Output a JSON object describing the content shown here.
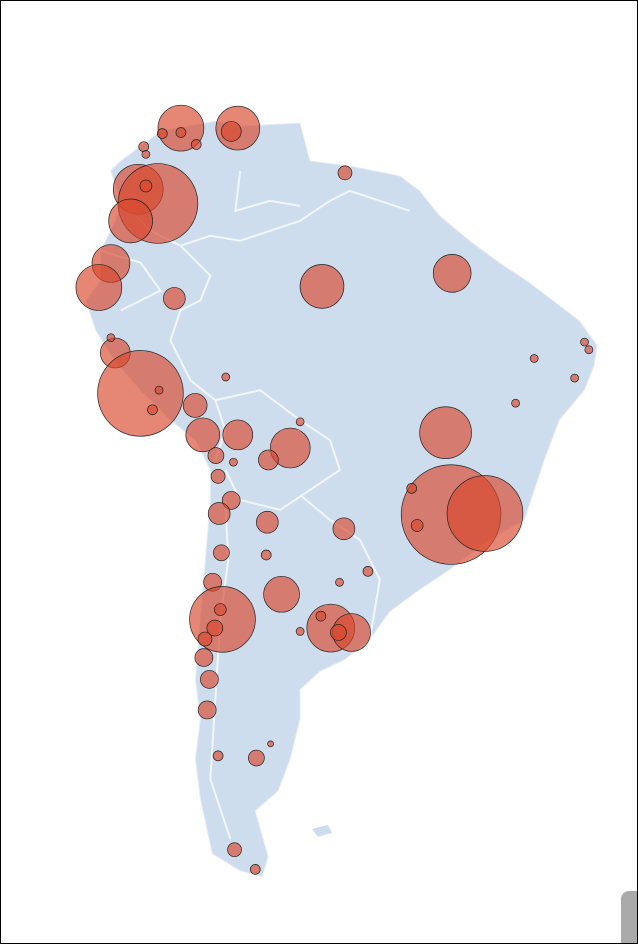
{
  "chart_data": {
    "type": "bubble",
    "x": [
      -72.6,
      -67.4,
      -68.0,
      -74.3,
      -72.6,
      -71.2,
      -76.0,
      -75.8,
      -76.5,
      -74.7,
      -77.2,
      -75.8,
      -79.0,
      -80.1,
      -73.2,
      -59.7,
      -47.8,
      -57.6,
      -78.6,
      -76.3,
      -71.3,
      -70.6,
      -67.4,
      -62.6,
      -64.6,
      -69.4,
      -69.2,
      -68.0,
      -69.1,
      -64.7,
      -57.7,
      -48.4,
      -47.9,
      -44.8,
      -51.5,
      -51.0,
      -68.9,
      -69.7,
      -63.4,
      -68.8,
      -58.9,
      -57.0,
      -58.2,
      -70.5,
      -70.0,
      -70.2,
      -65.7,
      -69.2,
      -67.7,
      -65.8,
      -40.3,
      -36.6,
      -42.0,
      -35.3,
      -55.5,
      -74.6,
      -75.2,
      -61.7,
      -68.5,
      -64.8,
      -61.7,
      -69.5,
      -69.0,
      -70.4,
      -59.8,
      -58.1,
      -64.4,
      -67.8,
      -79.0,
      -35.7
    ],
    "y": [
      12.3,
      12.3,
      12.0,
      11.8,
      11.9,
      10.8,
      10.6,
      9.9,
      6.7,
      5.4,
      3.8,
      7.0,
      -0.1,
      -2.3,
      -3.3,
      -2.2,
      -1.0,
      8.2,
      -8.3,
      -12.0,
      -13.1,
      -15.8,
      -15.8,
      -17.0,
      -18.1,
      -17.7,
      -19.6,
      -21.8,
      -23.0,
      -23.8,
      -24.4,
      -15.6,
      -23.1,
      -23.0,
      -20.7,
      -24.1,
      -26.6,
      -29.3,
      -30.4,
      -32.7,
      -33.5,
      -33.9,
      -33.9,
      -36.2,
      -38.2,
      -41.0,
      -45.4,
      -45.2,
      -53.8,
      -55.6,
      -8.8,
      -10.6,
      -12.9,
      -8.0,
      -28.3,
      -11.7,
      -13.5,
      -14.6,
      -10.5,
      -26.8,
      -33.8,
      -33.5,
      -31.8,
      -34.5,
      -32.4,
      -29.3,
      -44.1,
      -18.3,
      -6.9,
      -7.3
    ],
    "sizes": [
      529,
      484,
      100,
      25,
      25,
      25,
      25,
      16,
      625,
      1600,
      484,
      36,
      361,
      529,
      121,
      484,
      361,
      49,
      225,
      1849,
      144,
      289,
      225,
      400,
      100,
      64,
      49,
      81,
      121,
      121,
      121,
      676,
      2500,
      1444,
      25,
      36,
      64,
      81,
      324,
      1089,
      576,
      361,
      64,
      81,
      81,
      81,
      64,
      25,
      49,
      25,
      16,
      16,
      16,
      16,
      25,
      16,
      25,
      16,
      16,
      25,
      16,
      64,
      36,
      49,
      25,
      16,
      9,
      16,
      16,
      16
    ],
    "xlim": [
      -89.05,
      -30.9
    ],
    "ylim": [
      -62.3,
      23.9
    ],
    "color": "#d9472b"
  }
}
